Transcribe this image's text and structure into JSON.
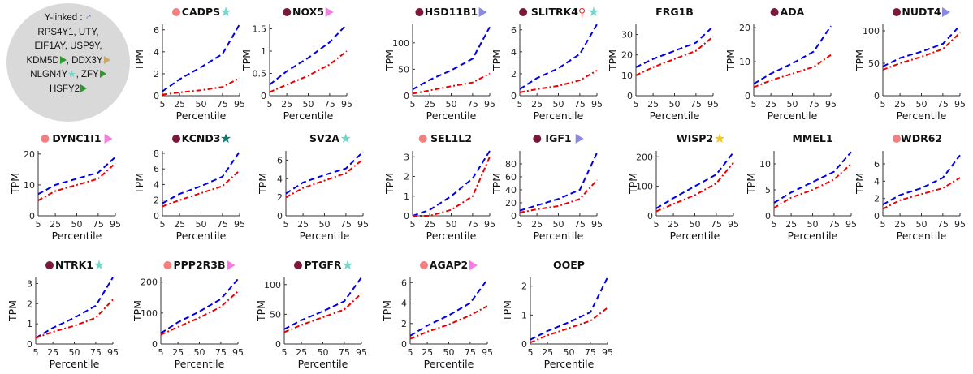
{
  "legend": {
    "line1": "Y-linked : ",
    "male_symbol": "♂",
    "line2": "RPS4Y1, UTY,",
    "line3": "EIF1AY, USP9Y,",
    "line4a": "KDM5D",
    "line4b": ", DDX3Y",
    "line5a": "NLGN4Y",
    "line5b": ", ZFY",
    "line6": "HSFY2"
  },
  "colors": {
    "series_blue": "#0000ee",
    "series_red": "#ee0000",
    "dot_dark": "#7a1a3a",
    "dot_light": "#f28080",
    "star_teal": "#6fd6c8",
    "star_dark_teal": "#0f7a6e",
    "star_gold": "#f5c518",
    "tri_pink": "#f07fe0",
    "tri_violet": "#8a8ae0",
    "female_symbol_color": "#e03030"
  },
  "chart_data": [
    {
      "type": "line",
      "title": "CADPS",
      "dot": "light",
      "marker": "star_teal",
      "xlabel": "Percentile",
      "ylabel": "TPM",
      "x": [
        5,
        25,
        50,
        75,
        95
      ],
      "xticks": [
        "5",
        "25",
        "50",
        "75",
        "95"
      ],
      "ylim": [
        0,
        6.5
      ],
      "yticks": [
        0,
        2,
        4,
        6
      ],
      "series": [
        {
          "values": [
            0.4,
            1.5,
            2.6,
            3.8,
            6.5
          ]
        },
        {
          "values": [
            0.1,
            0.3,
            0.5,
            0.8,
            1.6
          ]
        }
      ]
    },
    {
      "type": "line",
      "title": "NOX5",
      "dot": "dark",
      "marker": "tri_pink",
      "xlabel": "Percentile",
      "ylabel": "TPM",
      "x": [
        5,
        25,
        50,
        75,
        95
      ],
      "xticks": [
        "5",
        "25",
        "50",
        "75",
        "95"
      ],
      "ylim": [
        0,
        1.6
      ],
      "yticks": [
        0,
        0.5,
        1,
        1.5
      ],
      "series": [
        {
          "values": [
            0.25,
            0.55,
            0.85,
            1.2,
            1.6
          ]
        },
        {
          "values": [
            0.08,
            0.25,
            0.45,
            0.7,
            1.0
          ]
        }
      ]
    },
    {
      "type": "line",
      "title": "HSD11B1",
      "dot": "dark",
      "marker": "tri_violet",
      "xlabel": "Percentile",
      "ylabel": "TPM",
      "x": [
        5,
        25,
        50,
        75,
        95
      ],
      "xticks": [
        "5",
        "25",
        "50",
        "75",
        "95"
      ],
      "ylim": [
        0,
        135
      ],
      "yticks": [
        0,
        50,
        100
      ],
      "series": [
        {
          "values": [
            12,
            30,
            48,
            70,
            130
          ]
        },
        {
          "values": [
            4,
            10,
            18,
            25,
            42
          ]
        }
      ]
    },
    {
      "type": "line",
      "title": "SLITRK4",
      "female": "♀",
      "dot": "dark",
      "marker": "star_teal",
      "xlabel": "Percentile",
      "ylabel": "TPM",
      "x": [
        5,
        25,
        50,
        75,
        95
      ],
      "xticks": [
        "5",
        "25",
        "50",
        "75",
        "95"
      ],
      "ylim": [
        0,
        6.5
      ],
      "yticks": [
        0,
        2,
        4,
        6
      ],
      "series": [
        {
          "values": [
            0.6,
            1.6,
            2.5,
            3.8,
            6.5
          ]
        },
        {
          "values": [
            0.3,
            0.6,
            0.9,
            1.4,
            2.3
          ]
        }
      ]
    },
    {
      "type": "line",
      "title": "FRG1B",
      "dot": "none",
      "marker": "none",
      "xlabel": "Percentile",
      "ylabel": "TPM",
      "x": [
        5,
        25,
        50,
        75,
        95
      ],
      "xticks": [
        "5",
        "25",
        "50",
        "75",
        "95"
      ],
      "ylim": [
        0,
        35
      ],
      "yticks": [
        0,
        10,
        20,
        30
      ],
      "series": [
        {
          "values": [
            14,
            18,
            22,
            26,
            34
          ]
        },
        {
          "values": [
            10,
            14,
            18,
            22,
            29
          ]
        }
      ]
    },
    {
      "type": "line",
      "title": "ADA",
      "dot": "dark",
      "marker": "none",
      "xlabel": "Percentile",
      "ylabel": "TPM",
      "x": [
        5,
        25,
        50,
        75,
        95
      ],
      "xticks": [
        "5",
        "25",
        "50",
        "75",
        "95"
      ],
      "ylim": [
        0,
        21
      ],
      "yticks": [
        0,
        10,
        20
      ],
      "series": [
        {
          "values": [
            3.5,
            6.5,
            9.5,
            13,
            20.5
          ]
        },
        {
          "values": [
            2.5,
            4.5,
            6.5,
            8.5,
            12
          ]
        }
      ]
    },
    {
      "type": "line",
      "title": "NUDT4",
      "dot": "dark",
      "marker": "tri_violet",
      "xlabel": "Percentile",
      "ylabel": "TPM",
      "x": [
        5,
        25,
        50,
        75,
        95
      ],
      "xticks": [
        "5",
        "25",
        "50",
        "75",
        "95"
      ],
      "ylim": [
        0,
        110
      ],
      "yticks": [
        0,
        50,
        100
      ],
      "series": [
        {
          "values": [
            45,
            58,
            68,
            80,
            108
          ]
        },
        {
          "values": [
            40,
            50,
            60,
            72,
            97
          ]
        }
      ]
    },
    {
      "type": "line",
      "title": "DYNC1I1",
      "dot": "light",
      "marker": "tri_pink",
      "xlabel": "Percentile",
      "ylabel": "TPM",
      "x": [
        5,
        25,
        50,
        75,
        95
      ],
      "xticks": [
        "5",
        "25",
        "50",
        "75",
        "95"
      ],
      "ylim": [
        0,
        21
      ],
      "yticks": [
        0,
        10,
        20
      ],
      "series": [
        {
          "values": [
            7,
            10,
            12,
            14,
            19
          ]
        },
        {
          "values": [
            5,
            8,
            10,
            12,
            17
          ]
        }
      ]
    },
    {
      "type": "line",
      "title": "KCND3",
      "dot": "dark",
      "marker": "star_dark_teal",
      "xlabel": "Percentile",
      "ylabel": "TPM",
      "x": [
        5,
        25,
        50,
        75,
        95
      ],
      "xticks": [
        "5",
        "25",
        "50",
        "75",
        "95"
      ],
      "ylim": [
        0,
        8.3
      ],
      "yticks": [
        0,
        2,
        4,
        6,
        8
      ],
      "series": [
        {
          "values": [
            1.6,
            2.8,
            3.8,
            5.0,
            8.2
          ]
        },
        {
          "values": [
            1.2,
            2.0,
            2.9,
            3.8,
            5.8
          ]
        }
      ]
    },
    {
      "type": "line",
      "title": "SV2A",
      "dot": "none",
      "marker": "star_teal",
      "xlabel": "Percentile",
      "ylabel": "TPM",
      "x": [
        5,
        25,
        50,
        75,
        95
      ],
      "xticks": [
        "5",
        "25",
        "50",
        "75",
        "95"
      ],
      "ylim": [
        0,
        7
      ],
      "yticks": [
        0,
        2,
        4,
        6
      ],
      "series": [
        {
          "values": [
            2.4,
            3.6,
            4.4,
            5.1,
            6.9
          ]
        },
        {
          "values": [
            2.0,
            3.0,
            3.8,
            4.6,
            6.1
          ]
        }
      ]
    },
    {
      "type": "line",
      "title": "SEL1L2",
      "dot": "light",
      "marker": "none",
      "xlabel": "Percentile",
      "ylabel": "TPM",
      "x": [
        5,
        25,
        50,
        75,
        95
      ],
      "xticks": [
        "5",
        "25",
        "50",
        "75",
        "95"
      ],
      "ylim": [
        0,
        3.3
      ],
      "yticks": [
        0,
        1,
        2,
        3
      ],
      "series": [
        {
          "values": [
            0,
            0.3,
            1.0,
            1.9,
            3.3
          ]
        },
        {
          "values": [
            0,
            0,
            0.3,
            1.0,
            3.0
          ]
        }
      ]
    },
    {
      "type": "line",
      "title": "IGF1",
      "dot": "dark",
      "marker": "tri_violet",
      "xlabel": "Percentile",
      "ylabel": "TPM",
      "x": [
        5,
        25,
        50,
        75,
        95
      ],
      "xticks": [
        "5",
        "25",
        "50",
        "75",
        "95"
      ],
      "ylim": [
        0,
        100
      ],
      "yticks": [
        0,
        20,
        40,
        60,
        80
      ],
      "series": [
        {
          "values": [
            8,
            16,
            26,
            40,
            97
          ]
        },
        {
          "values": [
            5,
            10,
            15,
            26,
            55
          ]
        }
      ]
    },
    {
      "type": "line",
      "title": "WISP2",
      "dot": "none",
      "marker": "star_gold",
      "xlabel": "Percentile",
      "ylabel": "TPM",
      "x": [
        5,
        25,
        50,
        75,
        95
      ],
      "xticks": [
        "5",
        "25",
        "50",
        "75",
        "95"
      ],
      "ylim": [
        0,
        220
      ],
      "yticks": [
        0,
        100,
        200
      ],
      "series": [
        {
          "values": [
            25,
            60,
            100,
            140,
            215
          ]
        },
        {
          "values": [
            15,
            40,
            70,
            110,
            180
          ]
        }
      ]
    },
    {
      "type": "line",
      "title": "MMEL1",
      "dot": "none",
      "marker": "none",
      "xlabel": "Percentile",
      "ylabel": "TPM",
      "x": [
        5,
        25,
        50,
        75,
        95
      ],
      "xticks": [
        "5",
        "25",
        "50",
        "75",
        "95"
      ],
      "ylim": [
        0,
        12.5
      ],
      "yticks": [
        0,
        5,
        10
      ],
      "series": [
        {
          "values": [
            2.5,
            4.5,
            6.5,
            8.5,
            12.3
          ]
        },
        {
          "values": [
            1.5,
            3.5,
            5.0,
            7.0,
            10.0
          ]
        }
      ]
    },
    {
      "type": "line",
      "title": "WDR62",
      "dot": "light",
      "marker": "none",
      "xlabel": "Percentile",
      "ylabel": "TPM",
      "x": [
        5,
        25,
        50,
        75,
        95
      ],
      "xticks": [
        "5",
        "25",
        "50",
        "75",
        "95"
      ],
      "ylim": [
        0,
        7.5
      ],
      "yticks": [
        0,
        2,
        4,
        6
      ],
      "series": [
        {
          "values": [
            1.3,
            2.4,
            3.2,
            4.4,
            7.0
          ]
        },
        {
          "values": [
            0.8,
            1.8,
            2.5,
            3.2,
            4.4
          ]
        }
      ]
    },
    {
      "type": "line",
      "title": "NTRK1",
      "dot": "dark",
      "marker": "star_teal",
      "xlabel": "Percentile",
      "ylabel": "TPM",
      "x": [
        5,
        25,
        50,
        75,
        95
      ],
      "xticks": [
        "5",
        "25",
        "50",
        "75",
        "95"
      ],
      "ylim": [
        0,
        3.3
      ],
      "yticks": [
        0,
        1,
        2,
        3
      ],
      "series": [
        {
          "values": [
            0.3,
            0.8,
            1.3,
            1.9,
            3.3
          ]
        },
        {
          "values": [
            0.3,
            0.6,
            0.9,
            1.3,
            2.2
          ]
        }
      ]
    },
    {
      "type": "line",
      "title": "PPP2R3B",
      "dot": "light",
      "marker": "tri_pink",
      "xlabel": "Percentile",
      "ylabel": "TPM",
      "x": [
        5,
        25,
        50,
        75,
        95
      ],
      "xticks": [
        "5",
        "25",
        "50",
        "75",
        "95"
      ],
      "ylim": [
        0,
        215
      ],
      "yticks": [
        0,
        100,
        200
      ],
      "series": [
        {
          "values": [
            35,
            70,
            105,
            145,
            210
          ]
        },
        {
          "values": [
            30,
            55,
            85,
            120,
            170
          ]
        }
      ]
    },
    {
      "type": "line",
      "title": "PTGFR",
      "dot": "dark",
      "marker": "star_teal",
      "xlabel": "Percentile",
      "ylabel": "TPM",
      "x": [
        5,
        25,
        50,
        75,
        95
      ],
      "xticks": [
        "5",
        "25",
        "50",
        "75",
        "95"
      ],
      "ylim": [
        0,
        112
      ],
      "yticks": [
        0,
        50,
        100
      ],
      "series": [
        {
          "values": [
            25,
            40,
            55,
            72,
            112
          ]
        },
        {
          "values": [
            20,
            32,
            45,
            58,
            85
          ]
        }
      ]
    },
    {
      "type": "line",
      "title": "AGAP2",
      "dot": "light",
      "marker": "tri_pink",
      "xlabel": "Percentile",
      "ylabel": "TPM",
      "x": [
        5,
        25,
        50,
        75,
        95
      ],
      "xticks": [
        "5",
        "25",
        "50",
        "75",
        "95"
      ],
      "ylim": [
        0,
        6.5
      ],
      "yticks": [
        0,
        2,
        4,
        6
      ],
      "series": [
        {
          "values": [
            0.8,
            1.8,
            2.8,
            4.0,
            6.3
          ]
        },
        {
          "values": [
            0.5,
            1.2,
            1.9,
            2.8,
            3.7
          ]
        }
      ]
    },
    {
      "type": "line",
      "title": "OOEP",
      "dot": "none",
      "marker": "none",
      "xlabel": "Percentile",
      "ylabel": "TPM",
      "x": [
        5,
        25,
        50,
        75,
        95
      ],
      "xticks": [
        "5",
        "25",
        "50",
        "75",
        "95"
      ],
      "ylim": [
        0,
        2.3
      ],
      "yticks": [
        0,
        1,
        2
      ],
      "series": [
        {
          "values": [
            0.15,
            0.45,
            0.75,
            1.1,
            2.3
          ]
        },
        {
          "values": [
            0.05,
            0.3,
            0.55,
            0.8,
            1.25
          ]
        }
      ]
    }
  ]
}
